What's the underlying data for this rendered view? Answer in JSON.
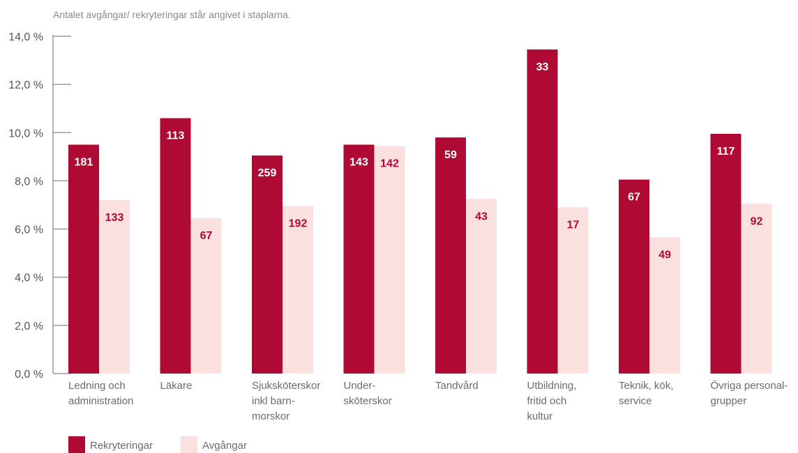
{
  "chart_data": {
    "type": "bar",
    "note": "Antalet avgångar/ rekryteringar står angivet i staplarna.",
    "y_tick_labels": [
      "0,0 %",
      "2,0 %",
      "4,0 %",
      "6,0 %",
      "8,0 %",
      "10,0 %",
      "12,0 %",
      "14,0 %"
    ],
    "ylim": [
      0,
      14
    ],
    "grid": false,
    "legend_position": "bottom-left",
    "categories": [
      [
        "Ledning och",
        "administration"
      ],
      [
        "Läkare"
      ],
      [
        "Sjuksköterskor",
        "inkl barn-",
        "morskor"
      ],
      [
        "Under-",
        "sköterskor"
      ],
      [
        "Tandvård"
      ],
      [
        "Utbildning,",
        "fritid och",
        "kultur"
      ],
      [
        "Teknik, kök,",
        "service"
      ],
      [
        "Övriga personal-",
        "grupper"
      ]
    ],
    "series": [
      {
        "name": "Rekryteringar",
        "color": "#ae0a33",
        "label_color": "#ffffff",
        "values": [
          9.5,
          10.6,
          9.05,
          9.5,
          9.8,
          13.45,
          8.05,
          9.95
        ],
        "labels": [
          "181",
          "113",
          "259",
          "143",
          "59",
          "33",
          "67",
          "117"
        ]
      },
      {
        "name": "Avgångar",
        "color": "#fbe0e0",
        "label_color": "#ae0a33",
        "values": [
          7.2,
          6.45,
          6.95,
          9.45,
          7.25,
          6.9,
          5.65,
          7.05
        ],
        "labels": [
          "133",
          "67",
          "192",
          "142",
          "43",
          "17",
          "49",
          "92"
        ]
      }
    ]
  }
}
